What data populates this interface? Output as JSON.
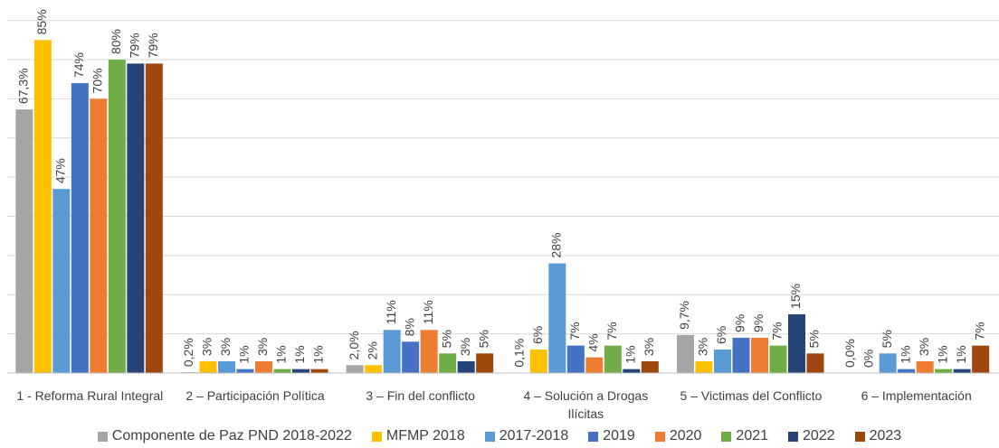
{
  "chart_data": {
    "type": "bar",
    "categories": [
      "1 -  Reforma Rural Integral",
      "2 – Participación Política",
      "3 – Fin del conflicto",
      "4 – Solución a Drogas Ilícitas",
      "5 – Victimas del Conflicto",
      "6 – Implementación"
    ],
    "series": [
      {
        "name": "Componente de Paz PND 2018-2022",
        "color": "#a5a5a5",
        "values": [
          67.3,
          0.2,
          2.0,
          0.1,
          9.7,
          0.0
        ],
        "value_labels": [
          "67,3%",
          "0,2%",
          "2,0%",
          "0,1%",
          "9,7%",
          "0,0%"
        ]
      },
      {
        "name": "MFMP 2018",
        "color": "#ffc000",
        "values": [
          85,
          3,
          2,
          6,
          3,
          0
        ],
        "value_labels": [
          "85%",
          "3%",
          "2%",
          "6%",
          "3%",
          "0%"
        ]
      },
      {
        "name": "2017-2018",
        "color": "#5b9bd5",
        "values": [
          47,
          3,
          11,
          28,
          6,
          5
        ],
        "value_labels": [
          "47%",
          "3%",
          "11%",
          "28%",
          "6%",
          "5%"
        ]
      },
      {
        "name": "2019",
        "color": "#4472c4",
        "values": [
          74,
          1,
          8,
          7,
          9,
          1
        ],
        "value_labels": [
          "74%",
          "1%",
          "8%",
          "7%",
          "9%",
          "1%"
        ]
      },
      {
        "name": "2020",
        "color": "#ed7d31",
        "values": [
          70,
          3,
          11,
          4,
          9,
          3
        ],
        "value_labels": [
          "70%",
          "3%",
          "11%",
          "4%",
          "9%",
          "3%"
        ]
      },
      {
        "name": "2021",
        "color": "#70ad47",
        "values": [
          80,
          1,
          5,
          7,
          7,
          1
        ],
        "value_labels": [
          "80%",
          "1%",
          "5%",
          "7%",
          "7%",
          "1%"
        ]
      },
      {
        "name": "2022",
        "color": "#264478",
        "values": [
          79,
          1,
          3,
          1,
          15,
          1
        ],
        "value_labels": [
          "79%",
          "1%",
          "3%",
          "1%",
          "15%",
          "1%"
        ]
      },
      {
        "name": "2023",
        "color": "#9e480e",
        "values": [
          79,
          1,
          5,
          3,
          5,
          7
        ],
        "value_labels": [
          "79%",
          "1%",
          "5%",
          "3%",
          "5%",
          "7%"
        ]
      }
    ],
    "ylim": [
      0,
      95
    ],
    "yticks": [
      0,
      10,
      20,
      30,
      40,
      50,
      60,
      70,
      80,
      90
    ],
    "grid": true
  }
}
